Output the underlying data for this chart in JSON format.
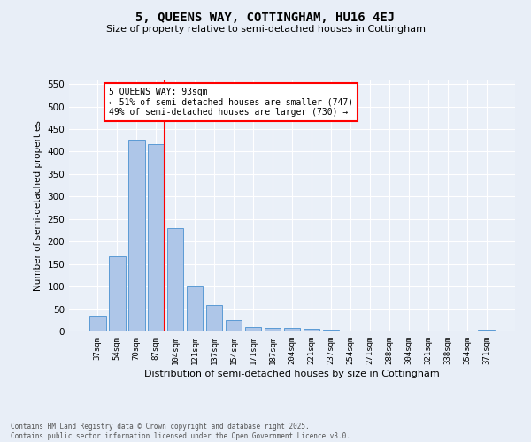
{
  "title": "5, QUEENS WAY, COTTINGHAM, HU16 4EJ",
  "subtitle": "Size of property relative to semi-detached houses in Cottingham",
  "xlabel": "Distribution of semi-detached houses by size in Cottingham",
  "ylabel": "Number of semi-detached properties",
  "categories": [
    "37sqm",
    "54sqm",
    "70sqm",
    "87sqm",
    "104sqm",
    "121sqm",
    "137sqm",
    "154sqm",
    "171sqm",
    "187sqm",
    "204sqm",
    "221sqm",
    "237sqm",
    "254sqm",
    "271sqm",
    "288sqm",
    "304sqm",
    "321sqm",
    "338sqm",
    "354sqm",
    "371sqm"
  ],
  "values": [
    33,
    168,
    427,
    417,
    230,
    101,
    59,
    25,
    10,
    8,
    8,
    5,
    4,
    1,
    0,
    0,
    0,
    0,
    0,
    0,
    4
  ],
  "bar_color": "#aec6e8",
  "bar_edge_color": "#5b9bd5",
  "vline_x_bar_idx": 3,
  "vline_color": "red",
  "annotation_title": "5 QUEENS WAY: 93sqm",
  "annotation_line1": "← 51% of semi-detached houses are smaller (747)",
  "annotation_line2": "49% of semi-detached houses are larger (730) →",
  "ylim": [
    0,
    560
  ],
  "yticks": [
    0,
    50,
    100,
    150,
    200,
    250,
    300,
    350,
    400,
    450,
    500,
    550
  ],
  "footer_line1": "Contains HM Land Registry data © Crown copyright and database right 2025.",
  "footer_line2": "Contains public sector information licensed under the Open Government Licence v3.0.",
  "bg_color": "#e8eef7",
  "plot_bg_color": "#eaf0f8"
}
